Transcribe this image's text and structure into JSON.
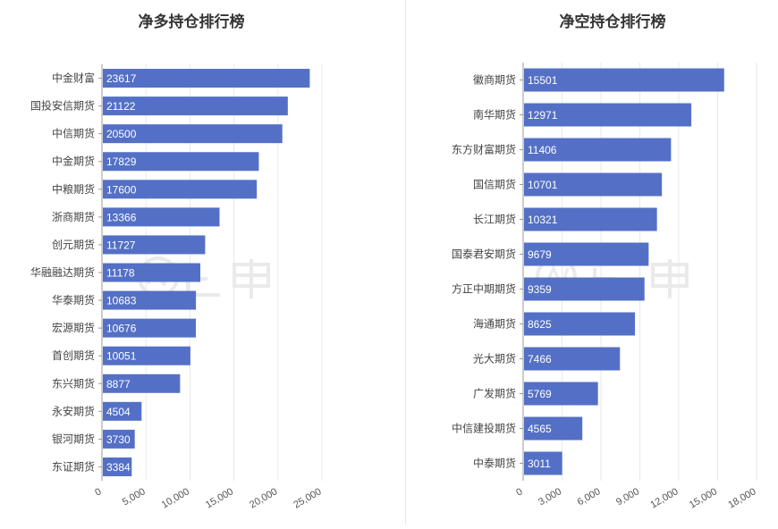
{
  "chart_data": [
    {
      "type": "bar",
      "orientation": "horizontal",
      "title": "净多持仓排行榜",
      "categories": [
        "中金财富",
        "国投安信期货",
        "中信期货",
        "中金期货",
        "中粮期货",
        "浙商期货",
        "创元期货",
        "华融融达期货",
        "华泰期货",
        "宏源期货",
        "首创期货",
        "东兴期货",
        "永安期货",
        "银河期货",
        "东证期货"
      ],
      "values": [
        23617,
        21122,
        20500,
        17829,
        17600,
        13366,
        11727,
        11178,
        10683,
        10676,
        10051,
        8877,
        4504,
        3730,
        3384
      ],
      "xlim": [
        0,
        25000
      ],
      "xticks": [
        0,
        5000,
        10000,
        15000,
        20000,
        25000
      ],
      "xtick_labels": [
        "0",
        "5,000",
        "10,000",
        "15,000",
        "20,000",
        "25,000"
      ],
      "grid": "vertical",
      "bar_color": "#5470c6"
    },
    {
      "type": "bar",
      "orientation": "horizontal",
      "title": "净空持仓排行榜",
      "categories": [
        "徽商期货",
        "南华期货",
        "东方财富期货",
        "国信期货",
        "长江期货",
        "国泰君安期货",
        "方正中期期货",
        "海通期货",
        "光大期货",
        "广发期货",
        "中信建投期货",
        "中泰期货"
      ],
      "values": [
        15501,
        12971,
        11406,
        10701,
        10321,
        9679,
        9359,
        8625,
        7466,
        5769,
        4565,
        3011
      ],
      "xlim": [
        0,
        18000
      ],
      "xticks": [
        0,
        3000,
        6000,
        9000,
        12000,
        15000,
        18000
      ],
      "xtick_labels": [
        "0",
        "3,000",
        "6,000",
        "9,000",
        "12,000",
        "15,000",
        "18,000"
      ],
      "grid": "vertical",
      "bar_color": "#5470c6"
    }
  ],
  "watermark": {
    "text": "上甲"
  }
}
